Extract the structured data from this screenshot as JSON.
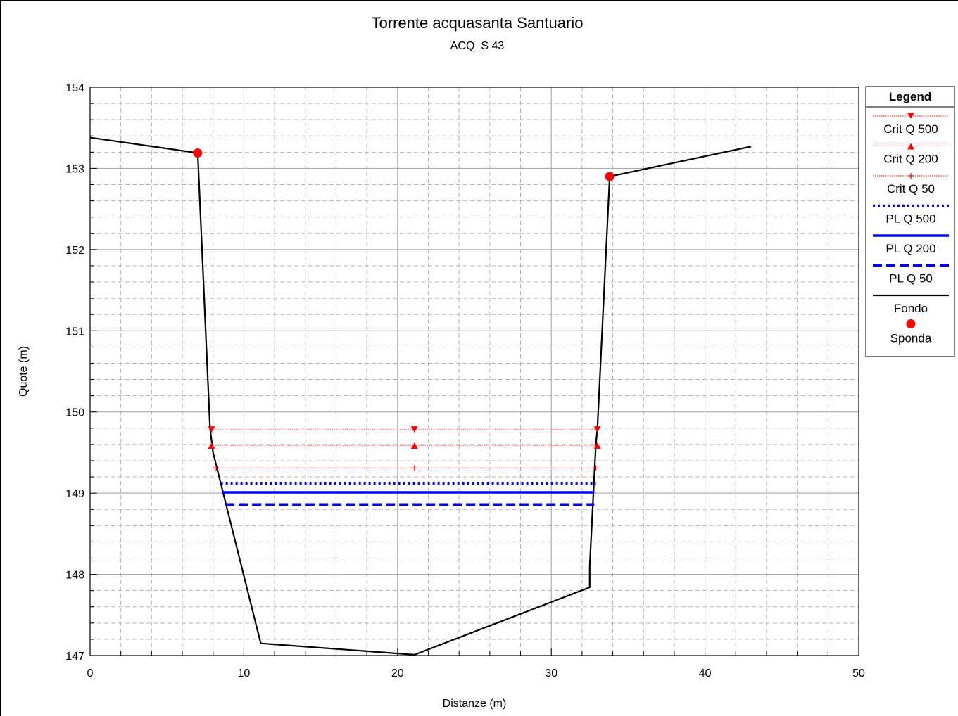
{
  "chart_data": {
    "type": "line",
    "title": "Torrente acquasanta Santuario",
    "subtitle": "ACQ_S 43",
    "xlabel": "Distanze (m)",
    "ylabel": "Quote (m)",
    "xlim": [
      0,
      50
    ],
    "ylim": [
      147,
      154
    ],
    "x_ticks": [
      0,
      10,
      20,
      30,
      40,
      50
    ],
    "y_ticks": [
      147,
      148,
      149,
      150,
      151,
      152,
      153,
      154
    ],
    "grid": true,
    "legend_title": "Legend",
    "legend_position": "right",
    "series": [
      {
        "name": "Crit Q 500",
        "kind": "crit",
        "marker": "triangle-down",
        "color": "#ff0000",
        "x": [
          7.9,
          21.1,
          33.0
        ],
        "y": [
          149.78,
          149.78,
          149.78
        ]
      },
      {
        "name": "Crit Q 200",
        "kind": "crit",
        "marker": "triangle-up",
        "color": "#ff0000",
        "x": [
          7.9,
          21.1,
          33.0
        ],
        "y": [
          149.59,
          149.59,
          149.59
        ]
      },
      {
        "name": "Crit Q 50",
        "kind": "crit",
        "marker": "plus",
        "color": "#ff0000",
        "x": [
          8.2,
          21.1,
          32.9
        ],
        "y": [
          149.31,
          149.31,
          149.31
        ]
      },
      {
        "name": "PL Q 500",
        "kind": "pl",
        "dash": "dotted",
        "color": "#0000ff",
        "x": [
          8.5,
          32.9
        ],
        "y": [
          149.12,
          149.12
        ]
      },
      {
        "name": "PL Q 200",
        "kind": "pl",
        "dash": "solid",
        "color": "#0000ff",
        "x": [
          8.6,
          32.8
        ],
        "y": [
          149.01,
          149.01
        ]
      },
      {
        "name": "PL Q 50",
        "kind": "pl",
        "dash": "dashed",
        "color": "#0000ff",
        "x": [
          8.8,
          32.8
        ],
        "y": [
          148.86,
          148.86
        ]
      },
      {
        "name": "Fondo",
        "kind": "ground",
        "color": "#000000",
        "x": [
          0,
          7.0,
          7.8,
          8.0,
          11.1,
          21.1,
          32.5,
          32.5,
          32.9,
          33.0,
          33.8,
          43.0
        ],
        "y": [
          153.38,
          153.19,
          149.8,
          149.5,
          147.15,
          147.01,
          147.84,
          148.1,
          149.6,
          149.8,
          152.9,
          153.27
        ]
      },
      {
        "name": "Sponda",
        "kind": "bank",
        "marker": "circle",
        "color": "#ff0000",
        "x": [
          7.0,
          33.8
        ],
        "y": [
          153.19,
          152.9
        ]
      }
    ]
  }
}
